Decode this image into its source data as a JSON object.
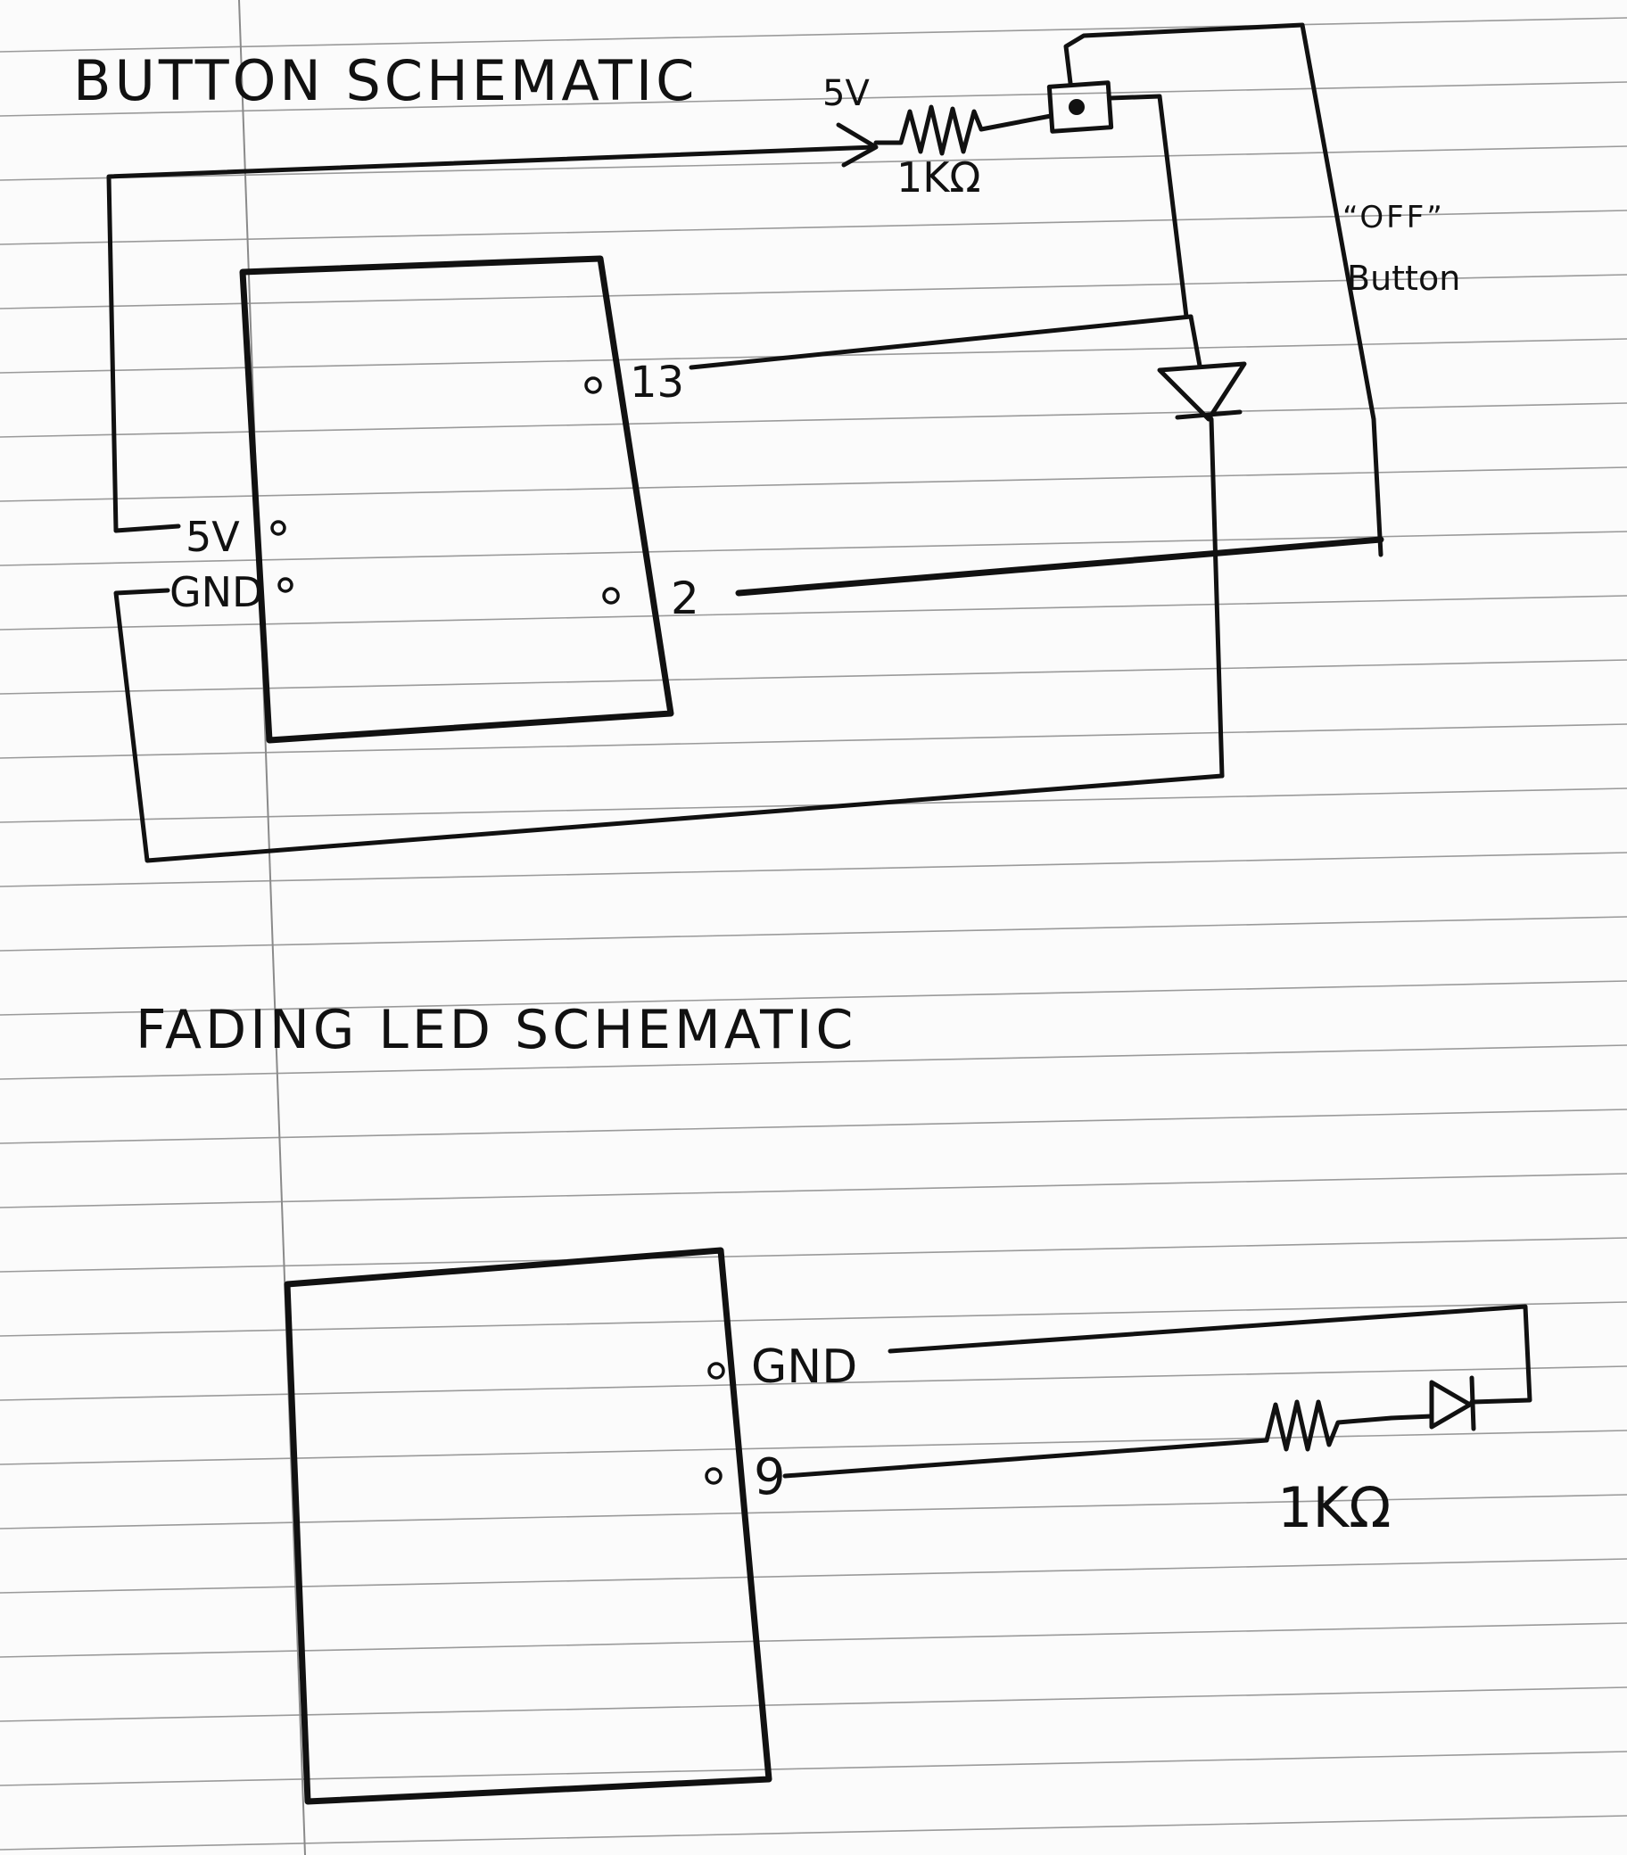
{
  "button_schematic": {
    "title": "BUTTON SCHEMATIC",
    "supply_label": "5V",
    "resistor_label": "1KΩ",
    "button_label_line1": "“OFF”",
    "button_label_line2": "Button",
    "pin_13": "13",
    "pin_2": "2",
    "pin_5v": "5V",
    "pin_gnd": "GND"
  },
  "fading_led_schematic": {
    "title": "FADING LED SCHEMATIC",
    "pin_gnd": "GND",
    "pin_9": "9",
    "resistor_label": "1KΩ"
  },
  "colors": {
    "ink": "#111111",
    "paper": "#fbfbfb",
    "rule": "#9a9a9a"
  }
}
